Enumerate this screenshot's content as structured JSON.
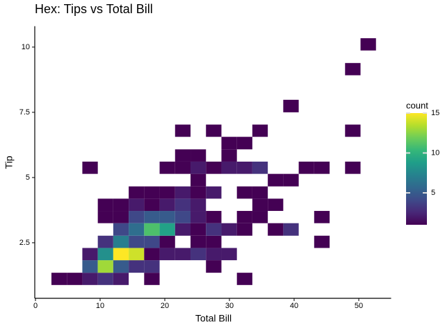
{
  "chart_data": {
    "type": "bin2d",
    "title": "Hex: Tips vs Total Bill",
    "x_label": "Total Bill",
    "y_label": "Tip",
    "xlim": [
      0,
      55
    ],
    "ylim": [
      0.37,
      10.8
    ],
    "xticks": [
      0,
      10,
      20,
      30,
      40,
      50
    ],
    "yticks": [
      2.5,
      5,
      7.5,
      10
    ],
    "legend_title": "count",
    "clim": [
      1,
      15
    ],
    "cticks": [
      5,
      10,
      15
    ],
    "colormap": "viridis",
    "cells": [
      {
        "x": [
          2.47,
          4.86
        ],
        "y": [
          0.88,
          1.35
        ],
        "count": 1
      },
      {
        "x": [
          4.86,
          7.25
        ],
        "y": [
          0.88,
          1.35
        ],
        "count": 1
      },
      {
        "x": [
          7.25,
          9.64
        ],
        "y": [
          0.88,
          1.35
        ],
        "count": 2
      },
      {
        "x": [
          9.64,
          12.03
        ],
        "y": [
          0.88,
          1.35
        ],
        "count": 3
      },
      {
        "x": [
          12.03,
          14.42
        ],
        "y": [
          0.88,
          1.35
        ],
        "count": 2
      },
      {
        "x": [
          16.81,
          19.2
        ],
        "y": [
          0.88,
          1.35
        ],
        "count": 1
      },
      {
        "x": [
          31.15,
          33.54
        ],
        "y": [
          0.88,
          1.35
        ],
        "count": 1
      },
      {
        "x": [
          7.25,
          9.64
        ],
        "y": [
          1.35,
          1.83
        ],
        "count": 5
      },
      {
        "x": [
          9.64,
          12.03
        ],
        "y": [
          1.35,
          1.83
        ],
        "count": 13
      },
      {
        "x": [
          12.03,
          14.42
        ],
        "y": [
          1.35,
          1.83
        ],
        "count": 5
      },
      {
        "x": [
          14.42,
          16.81
        ],
        "y": [
          1.35,
          1.83
        ],
        "count": 3
      },
      {
        "x": [
          16.81,
          19.2
        ],
        "y": [
          1.35,
          1.83
        ],
        "count": 3
      },
      {
        "x": [
          26.37,
          28.76
        ],
        "y": [
          1.35,
          1.83
        ],
        "count": 1
      },
      {
        "x": [
          7.25,
          9.64
        ],
        "y": [
          1.83,
          2.3
        ],
        "count": 2
      },
      {
        "x": [
          9.64,
          12.03
        ],
        "y": [
          1.83,
          2.3
        ],
        "count": 8
      },
      {
        "x": [
          12.03,
          14.42
        ],
        "y": [
          1.83,
          2.3
        ],
        "count": 15
      },
      {
        "x": [
          14.42,
          16.81
        ],
        "y": [
          1.83,
          2.3
        ],
        "count": 14
      },
      {
        "x": [
          16.81,
          19.2
        ],
        "y": [
          1.83,
          2.3
        ],
        "count": 1
      },
      {
        "x": [
          19.2,
          21.59
        ],
        "y": [
          1.83,
          2.3
        ],
        "count": 2
      },
      {
        "x": [
          21.59,
          23.98
        ],
        "y": [
          1.83,
          2.3
        ],
        "count": 2
      },
      {
        "x": [
          23.98,
          26.37
        ],
        "y": [
          1.83,
          2.3
        ],
        "count": 3
      },
      {
        "x": [
          26.37,
          28.76
        ],
        "y": [
          1.83,
          2.3
        ],
        "count": 2
      },
      {
        "x": [
          28.76,
          31.15
        ],
        "y": [
          1.83,
          2.3
        ],
        "count": 2
      },
      {
        "x": [
          9.64,
          12.03
        ],
        "y": [
          2.3,
          2.77
        ],
        "count": 3
      },
      {
        "x": [
          12.03,
          14.42
        ],
        "y": [
          2.3,
          2.77
        ],
        "count": 7
      },
      {
        "x": [
          14.42,
          16.81
        ],
        "y": [
          2.3,
          2.77
        ],
        "count": 4
      },
      {
        "x": [
          16.81,
          19.2
        ],
        "y": [
          2.3,
          2.77
        ],
        "count": 4
      },
      {
        "x": [
          19.2,
          21.59
        ],
        "y": [
          2.3,
          2.77
        ],
        "count": 1
      },
      {
        "x": [
          23.98,
          26.37
        ],
        "y": [
          2.3,
          2.77
        ],
        "count": 1
      },
      {
        "x": [
          26.37,
          28.76
        ],
        "y": [
          2.3,
          2.77
        ],
        "count": 1
      },
      {
        "x": [
          43.1,
          45.49
        ],
        "y": [
          2.3,
          2.77
        ],
        "count": 1
      },
      {
        "x": [
          12.03,
          14.42
        ],
        "y": [
          2.77,
          3.25
        ],
        "count": 4
      },
      {
        "x": [
          14.42,
          16.81
        ],
        "y": [
          2.77,
          3.25
        ],
        "count": 6
      },
      {
        "x": [
          16.81,
          19.2
        ],
        "y": [
          2.77,
          3.25
        ],
        "count": 11
      },
      {
        "x": [
          19.2,
          21.59
        ],
        "y": [
          2.77,
          3.25
        ],
        "count": 9
      },
      {
        "x": [
          21.59,
          23.98
        ],
        "y": [
          2.77,
          3.25
        ],
        "count": 2
      },
      {
        "x": [
          23.98,
          26.37
        ],
        "y": [
          2.77,
          3.25
        ],
        "count": 1
      },
      {
        "x": [
          26.37,
          28.76
        ],
        "y": [
          2.77,
          3.25
        ],
        "count": 3
      },
      {
        "x": [
          28.76,
          31.15
        ],
        "y": [
          2.77,
          3.25
        ],
        "count": 2
      },
      {
        "x": [
          31.15,
          33.54
        ],
        "y": [
          2.77,
          3.25
        ],
        "count": 1
      },
      {
        "x": [
          35.93,
          38.32
        ],
        "y": [
          2.77,
          3.25
        ],
        "count": 1
      },
      {
        "x": [
          38.32,
          40.71
        ],
        "y": [
          2.77,
          3.25
        ],
        "count": 3
      },
      {
        "x": [
          9.64,
          12.03
        ],
        "y": [
          3.25,
          3.72
        ],
        "count": 1
      },
      {
        "x": [
          12.03,
          14.42
        ],
        "y": [
          3.25,
          3.72
        ],
        "count": 1
      },
      {
        "x": [
          14.42,
          16.81
        ],
        "y": [
          3.25,
          3.72
        ],
        "count": 4
      },
      {
        "x": [
          16.81,
          19.2
        ],
        "y": [
          3.25,
          3.72
        ],
        "count": 5
      },
      {
        "x": [
          19.2,
          21.59
        ],
        "y": [
          3.25,
          3.72
        ],
        "count": 5
      },
      {
        "x": [
          21.59,
          23.98
        ],
        "y": [
          3.25,
          3.72
        ],
        "count": 4
      },
      {
        "x": [
          23.98,
          26.37
        ],
        "y": [
          3.25,
          3.72
        ],
        "count": 2
      },
      {
        "x": [
          26.37,
          28.76
        ],
        "y": [
          3.25,
          3.72
        ],
        "count": 1
      },
      {
        "x": [
          31.15,
          33.54
        ],
        "y": [
          3.25,
          3.72
        ],
        "count": 1
      },
      {
        "x": [
          33.54,
          35.93
        ],
        "y": [
          3.25,
          3.72
        ],
        "count": 1
      },
      {
        "x": [
          43.1,
          45.49
        ],
        "y": [
          3.25,
          3.72
        ],
        "count": 1
      },
      {
        "x": [
          9.64,
          12.03
        ],
        "y": [
          3.72,
          4.19
        ],
        "count": 1
      },
      {
        "x": [
          12.03,
          14.42
        ],
        "y": [
          3.72,
          4.19
        ],
        "count": 1
      },
      {
        "x": [
          14.42,
          16.81
        ],
        "y": [
          3.72,
          4.19
        ],
        "count": 2
      },
      {
        "x": [
          16.81,
          19.2
        ],
        "y": [
          3.72,
          4.19
        ],
        "count": 1
      },
      {
        "x": [
          19.2,
          21.59
        ],
        "y": [
          3.72,
          4.19
        ],
        "count": 2
      },
      {
        "x": [
          21.59,
          23.98
        ],
        "y": [
          3.72,
          4.19
        ],
        "count": 3
      },
      {
        "x": [
          23.98,
          26.37
        ],
        "y": [
          3.72,
          4.19
        ],
        "count": 2
      },
      {
        "x": [
          33.54,
          35.93
        ],
        "y": [
          3.72,
          4.19
        ],
        "count": 1
      },
      {
        "x": [
          35.93,
          38.32
        ],
        "y": [
          3.72,
          4.19
        ],
        "count": 1
      },
      {
        "x": [
          14.42,
          16.81
        ],
        "y": [
          4.19,
          4.66
        ],
        "count": 1
      },
      {
        "x": [
          16.81,
          19.2
        ],
        "y": [
          4.19,
          4.66
        ],
        "count": 1
      },
      {
        "x": [
          19.2,
          21.59
        ],
        "y": [
          4.19,
          4.66
        ],
        "count": 1
      },
      {
        "x": [
          21.59,
          23.98
        ],
        "y": [
          4.19,
          4.66
        ],
        "count": 2
      },
      {
        "x": [
          23.98,
          26.37
        ],
        "y": [
          4.19,
          4.66
        ],
        "count": 1
      },
      {
        "x": [
          26.37,
          28.76
        ],
        "y": [
          4.19,
          4.66
        ],
        "count": 2
      },
      {
        "x": [
          31.15,
          33.54
        ],
        "y": [
          4.19,
          4.66
        ],
        "count": 1
      },
      {
        "x": [
          33.54,
          35.93
        ],
        "y": [
          4.19,
          4.66
        ],
        "count": 1
      },
      {
        "x": [
          23.98,
          26.37
        ],
        "y": [
          4.66,
          5.14
        ],
        "count": 1
      },
      {
        "x": [
          35.93,
          38.32
        ],
        "y": [
          4.66,
          5.14
        ],
        "count": 1
      },
      {
        "x": [
          38.32,
          40.71
        ],
        "y": [
          4.66,
          5.14
        ],
        "count": 1
      },
      {
        "x": [
          7.25,
          9.64
        ],
        "y": [
          5.14,
          5.61
        ],
        "count": 1
      },
      {
        "x": [
          19.2,
          21.59
        ],
        "y": [
          5.14,
          5.61
        ],
        "count": 1
      },
      {
        "x": [
          21.59,
          23.98
        ],
        "y": [
          5.14,
          5.61
        ],
        "count": 1
      },
      {
        "x": [
          23.98,
          26.37
        ],
        "y": [
          5.14,
          5.61
        ],
        "count": 2
      },
      {
        "x": [
          26.37,
          28.76
        ],
        "y": [
          5.14,
          5.61
        ],
        "count": 1
      },
      {
        "x": [
          28.76,
          31.15
        ],
        "y": [
          5.14,
          5.61
        ],
        "count": 2
      },
      {
        "x": [
          31.15,
          33.54
        ],
        "y": [
          5.14,
          5.61
        ],
        "count": 2
      },
      {
        "x": [
          33.54,
          35.93
        ],
        "y": [
          5.14,
          5.61
        ],
        "count": 3
      },
      {
        "x": [
          40.71,
          43.1
        ],
        "y": [
          5.14,
          5.61
        ],
        "count": 1
      },
      {
        "x": [
          43.1,
          45.49
        ],
        "y": [
          5.14,
          5.61
        ],
        "count": 1
      },
      {
        "x": [
          47.88,
          50.27
        ],
        "y": [
          5.14,
          5.61
        ],
        "count": 1
      },
      {
        "x": [
          21.59,
          23.98
        ],
        "y": [
          5.61,
          6.08
        ],
        "count": 1
      },
      {
        "x": [
          23.98,
          26.37
        ],
        "y": [
          5.61,
          6.08
        ],
        "count": 1
      },
      {
        "x": [
          28.76,
          31.15
        ],
        "y": [
          5.61,
          6.08
        ],
        "count": 1
      },
      {
        "x": [
          28.76,
          31.15
        ],
        "y": [
          6.08,
          6.56
        ],
        "count": 1
      },
      {
        "x": [
          31.15,
          33.54
        ],
        "y": [
          6.08,
          6.56
        ],
        "count": 1
      },
      {
        "x": [
          21.59,
          23.98
        ],
        "y": [
          6.56,
          7.03
        ],
        "count": 1
      },
      {
        "x": [
          26.37,
          28.76
        ],
        "y": [
          6.56,
          7.03
        ],
        "count": 1
      },
      {
        "x": [
          33.54,
          35.93
        ],
        "y": [
          6.56,
          7.03
        ],
        "count": 1
      },
      {
        "x": [
          47.88,
          50.27
        ],
        "y": [
          6.56,
          7.03
        ],
        "count": 1
      },
      {
        "x": [
          38.32,
          40.71
        ],
        "y": [
          7.5,
          7.98
        ],
        "count": 1
      },
      {
        "x": [
          47.88,
          50.27
        ],
        "y": [
          8.92,
          9.39
        ],
        "count": 1
      },
      {
        "x": [
          50.27,
          52.66
        ],
        "y": [
          9.87,
          10.34
        ],
        "count": 1
      }
    ]
  }
}
